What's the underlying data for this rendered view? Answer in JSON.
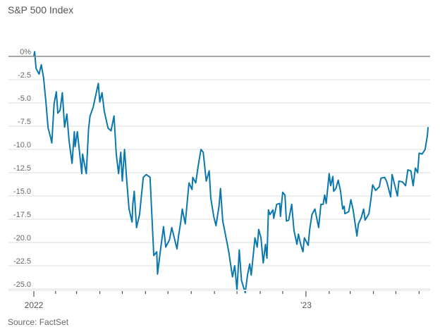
{
  "chart_data": {
    "type": "line",
    "title": "S&P 500 Index",
    "source": "Source: FactSet",
    "xlabel": "",
    "ylabel": "",
    "ylim": [
      -25,
      0
    ],
    "y_ticks": [
      0,
      -2.5,
      -5,
      -7.5,
      -10,
      -12.5,
      -15,
      -17.5,
      -20,
      -22.5,
      -25
    ],
    "y_tick_labels": [
      "0%",
      "-2.5",
      "-5.0",
      "-7.5",
      "-10.0",
      "-12.5",
      "-15.0",
      "-17.5",
      "-20.0",
      "-22.5",
      "-25.0"
    ],
    "x_range": [
      "2022-01-03",
      "2023-06-13"
    ],
    "x_tick_labels": [
      {
        "date": "2022-01-03",
        "label": "2022"
      },
      {
        "date": "2023-01-01",
        "label": "’23"
      }
    ],
    "x_ticks": "monthly",
    "grid": true,
    "line_color": "#0b78ad",
    "zero_line_color": "#888888",
    "grid_color": "#eeeeee",
    "series": [
      {
        "dates": [
          "2022-01-03",
          "2022-01-04",
          "2022-01-06",
          "2022-01-10",
          "2022-01-13",
          "2022-01-16",
          "2022-01-19",
          "2022-01-22",
          "2022-01-25",
          "2022-01-27",
          "2022-01-30",
          "2022-02-02",
          "2022-02-04",
          "2022-02-07",
          "2022-02-10",
          "2022-02-13",
          "2022-02-16",
          "2022-02-19",
          "2022-02-23",
          "2022-02-26",
          "2022-02-27",
          "2022-03-02",
          "2022-03-08",
          "2022-03-09",
          "2022-03-14",
          "2022-03-17",
          "2022-03-19",
          "2022-03-23",
          "2022-03-30",
          "2022-04-01",
          "2022-04-04",
          "2022-04-07",
          "2022-04-12",
          "2022-04-16",
          "2022-04-20",
          "2022-04-23",
          "2022-04-26",
          "2022-04-29",
          "2022-05-01",
          "2022-05-04",
          "2022-05-07",
          "2022-05-10",
          "2022-05-14",
          "2022-05-15",
          "2022-05-17",
          "2022-05-20",
          "2022-05-24",
          "2022-05-29",
          "2022-06-02",
          "2022-06-07",
          "2022-06-12",
          "2022-06-16",
          "2022-06-17",
          "2022-06-20",
          "2022-06-25",
          "2022-06-28",
          "2022-07-03",
          "2022-07-06",
          "2022-07-13",
          "2022-07-15",
          "2022-07-18",
          "2022-07-20",
          "2022-07-24",
          "2022-07-29",
          "2022-08-02",
          "2022-08-03",
          "2022-08-07",
          "2022-08-10",
          "2022-08-14",
          "2022-08-17",
          "2022-08-21",
          "2022-08-25",
          "2022-08-27",
          "2022-08-31",
          "2022-09-03",
          "2022-09-07",
          "2022-09-09",
          "2022-09-12",
          "2022-09-15",
          "2022-09-20",
          "2022-09-25",
          "2022-09-28",
          "2022-10-01",
          "2022-10-04",
          "2022-10-07",
          "2022-10-12",
          "2022-10-15",
          "2022-10-18",
          "2022-10-20",
          "2022-10-25",
          "2022-10-28",
          "2022-10-30",
          "2022-11-02",
          "2022-11-05",
          "2022-11-08",
          "2022-11-10",
          "2022-11-12",
          "2022-11-14",
          "2022-11-18",
          "2022-11-19",
          "2022-11-23",
          "2022-11-27",
          "2022-11-28",
          "2022-12-01",
          "2022-12-04",
          "2022-12-06",
          "2022-12-09",
          "2022-12-13",
          "2022-12-16",
          "2022-12-20",
          "2022-12-22",
          "2022-12-25",
          "2022-12-28",
          "2022-12-30",
          "2023-01-04",
          "2023-01-06",
          "2023-01-09",
          "2023-01-13",
          "2023-01-18",
          "2023-01-21",
          "2023-01-24",
          "2023-01-26",
          "2023-01-28",
          "2023-02-01",
          "2023-02-03",
          "2023-02-06",
          "2023-02-07",
          "2023-02-10",
          "2023-02-13",
          "2023-02-16",
          "2023-02-19",
          "2023-02-21",
          "2023-02-22",
          "2023-02-27",
          "2023-03-02",
          "2023-03-05",
          "2023-03-10",
          "2023-03-12",
          "2023-03-16",
          "2023-03-19",
          "2023-03-21",
          "2023-03-26",
          "2023-03-29",
          "2023-03-31",
          "2023-04-04",
          "2023-04-09",
          "2023-04-11",
          "2023-04-16",
          "2023-04-19",
          "2023-04-24",
          "2023-04-26",
          "2023-05-03",
          "2023-05-05",
          "2023-05-10",
          "2023-05-14",
          "2023-05-17",
          "2023-05-21",
          "2023-05-24",
          "2023-05-27",
          "2023-05-30",
          "2023-06-01",
          "2023-06-05",
          "2023-06-09",
          "2023-06-12",
          "2023-06-13"
        ],
        "values": [
          0,
          0.5,
          -1.3,
          -1.9,
          -0.9,
          -2.3,
          -4.8,
          -7.7,
          -8.6,
          -9.3,
          -5.1,
          -3.8,
          -6.1,
          -5.8,
          -3.9,
          -7.6,
          -6.2,
          -9.1,
          -11.5,
          -8.1,
          -9.7,
          -8.1,
          -12.6,
          -10.5,
          -12.6,
          -7.8,
          -6.4,
          -5.5,
          -2.9,
          -4.9,
          -3.9,
          -5.9,
          -7.7,
          -8.0,
          -6.4,
          -10.5,
          -12.6,
          -10.3,
          -13.4,
          -10.0,
          -13.4,
          -16.4,
          -17.8,
          -15.9,
          -14.5,
          -18.4,
          -17.0,
          -13.0,
          -12.7,
          -13.0,
          -21.4,
          -21.0,
          -23.4,
          -21.4,
          -18.3,
          -20.5,
          -19.7,
          -18.4,
          -20.7,
          -19.3,
          -17.8,
          -16.4,
          -18.0,
          -13.6,
          -14.3,
          -13.0,
          -13.6,
          -11.9,
          -10.0,
          -10.3,
          -13.4,
          -12.3,
          -15.2,
          -17.2,
          -18.2,
          -16.1,
          -14.2,
          -17.7,
          -18.9,
          -21.0,
          -23.7,
          -22.5,
          -25.1,
          -20.8,
          -24.1,
          -25.4,
          -23.5,
          -22.3,
          -23.5,
          -19.5,
          -20.5,
          -18.6,
          -19.5,
          -22.2,
          -20.2,
          -21.7,
          -16.5,
          -17.0,
          -16.5,
          -17.4,
          -15.9,
          -15.8,
          -17.2,
          -14.6,
          -14.9,
          -17.7,
          -17.6,
          -15.9,
          -18.7,
          -20.2,
          -19.1,
          -20.2,
          -21.0,
          -19.5,
          -20.3,
          -18.6,
          -17.0,
          -16.4,
          -18.4,
          -15.9,
          -15.9,
          -14.9,
          -15.8,
          -12.6,
          -13.9,
          -12.9,
          -14.5,
          -14.2,
          -13.3,
          -14.4,
          -16.4,
          -16.1,
          -16.9,
          -16.7,
          -15.4,
          -16.5,
          -19.3,
          -18.0,
          -17.3,
          -16.4,
          -17.6,
          -16.9,
          -15.2,
          -13.8,
          -14.4,
          -14.0,
          -13.1,
          -13.0,
          -13.5,
          -15.1,
          -12.7,
          -15.0,
          -13.4,
          -13.5,
          -13.9,
          -12.2,
          -12.3,
          -13.9,
          -12.0,
          -12.5,
          -10.4,
          -10.5,
          -10.0,
          -8.5,
          -7.6
        ]
      }
    ]
  }
}
